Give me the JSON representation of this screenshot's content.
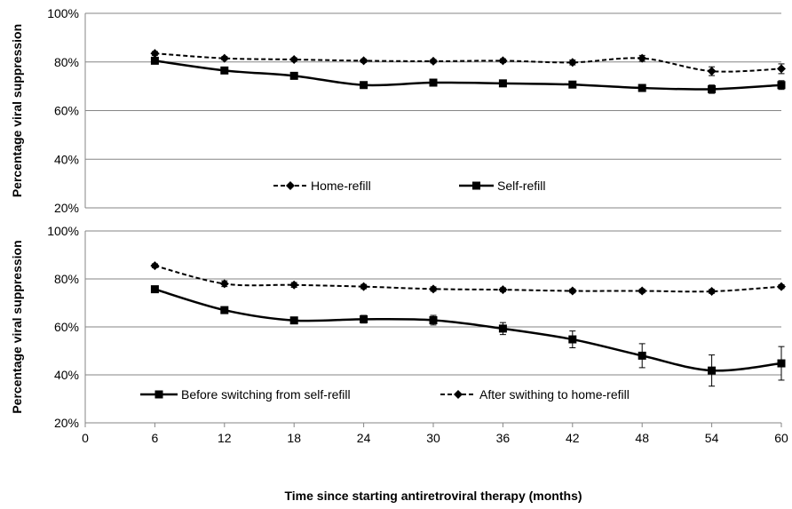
{
  "chart_data": [
    {
      "type": "line",
      "ylabel": "Percentage viral suppression",
      "ylim": [
        20,
        100
      ],
      "yticks": [
        "20%",
        "40%",
        "60%",
        "80%",
        "100%"
      ],
      "x": [
        6,
        12,
        18,
        24,
        30,
        36,
        42,
        48,
        54,
        60
      ],
      "grid": true,
      "legend_position": "center",
      "series": [
        {
          "name": "Home-refill",
          "style": "dashed",
          "marker": "diamond",
          "color": "#000000",
          "values": [
            83.5,
            81.5,
            81,
            80.5,
            80.3,
            80.5,
            79.8,
            81.5,
            76.2,
            77.2
          ],
          "errors": [
            0.8,
            0.7,
            0.7,
            0.7,
            0.7,
            0.8,
            1.0,
            1.2,
            1.8,
            2.0
          ]
        },
        {
          "name": "Self-refill",
          "style": "solid",
          "marker": "square",
          "color": "#000000",
          "values": [
            80.5,
            76.5,
            74.3,
            70.5,
            71.5,
            71.2,
            70.7,
            69.3,
            68.8,
            70.5
          ],
          "errors": [
            0.8,
            0.8,
            0.9,
            0.9,
            1.0,
            1.0,
            1.1,
            1.4,
            1.7,
            1.8
          ]
        }
      ]
    },
    {
      "type": "line",
      "ylabel": "Percentage viral suppression",
      "xlabel": "Time since starting antiretroviral therapy (months)",
      "ylim": [
        20,
        100
      ],
      "xlim": [
        0,
        60
      ],
      "yticks": [
        "20%",
        "40%",
        "60%",
        "80%",
        "100%"
      ],
      "xticks": [
        "0",
        "6",
        "12",
        "18",
        "24",
        "30",
        "36",
        "42",
        "48",
        "54",
        "60"
      ],
      "x": [
        6,
        12,
        18,
        24,
        30,
        36,
        42,
        48,
        54,
        60
      ],
      "grid": true,
      "legend_position": "bottom",
      "series": [
        {
          "name": "Before switching from self-refill",
          "style": "solid",
          "marker": "square",
          "color": "#000000",
          "values": [
            75.7,
            67,
            62.7,
            63.2,
            62.8,
            59.3,
            54.8,
            48,
            41.8,
            44.8
          ],
          "errors": [
            0.8,
            1.2,
            1.3,
            1.6,
            2.0,
            2.5,
            3.5,
            5.0,
            6.5,
            7.0
          ]
        },
        {
          "name": "After swithing to home-refill",
          "style": "dashed",
          "marker": "diamond",
          "color": "#000000",
          "values": [
            85.5,
            78,
            77.5,
            76.8,
            75.8,
            75.5,
            75,
            75,
            74.8,
            76.8
          ],
          "errors": [
            0.8,
            1.2,
            1.0,
            0.9,
            0.9,
            0.8,
            0.8,
            0.8,
            0.8,
            0.8
          ]
        }
      ]
    }
  ]
}
